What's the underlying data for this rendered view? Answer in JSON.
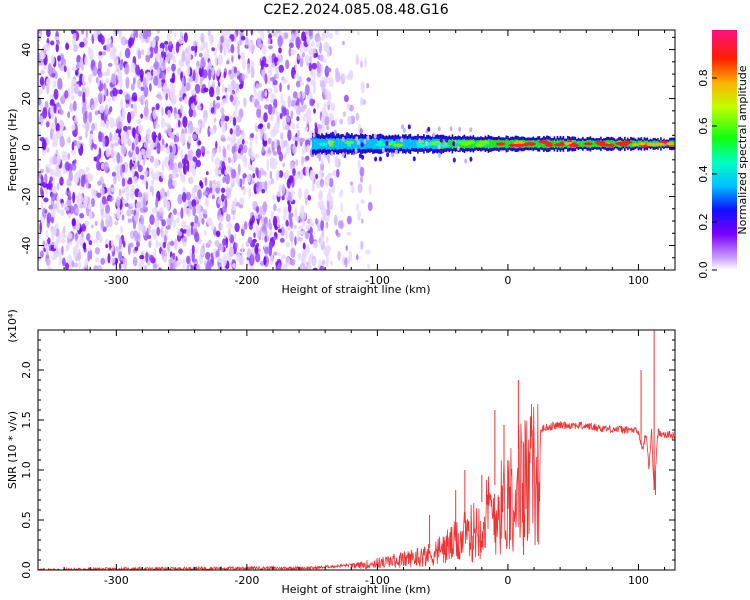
{
  "title": "C2E2.2024.085.08.48.G16",
  "chart_data": [
    {
      "type": "heatmap",
      "xlabel": "Height of straight line (km)",
      "ylabel": "Frequency (Hz)",
      "xlim": [
        -360,
        128
      ],
      "ylim": [
        -50,
        48
      ],
      "xticks": [
        -300,
        -200,
        -100,
        0,
        100
      ],
      "yticks": [
        -40,
        -20,
        0,
        20,
        40
      ],
      "colorbar": {
        "label": "Normalized spectral amplitude",
        "range": [
          0,
          1
        ],
        "ticks": [
          "0.0",
          "0.2",
          "0.4",
          "0.6",
          "0.8"
        ],
        "colormap": "rainbow"
      },
      "description_data": {
        "noise_region_x": [
          -360,
          -135
        ],
        "noise_frequency_range": [
          -50,
          48
        ],
        "signal_start_x": -150,
        "signal_frequency_center": 1.5,
        "signal_width_hz": [
          8,
          4
        ]
      }
    },
    {
      "type": "line",
      "xlabel": "Height of straight line (km)",
      "ylabel": "SNR (10 * v/v)",
      "y_multiplier": "(x10⁴)",
      "xlim": [
        -360,
        128
      ],
      "ylim": [
        0,
        2.4
      ],
      "xticks": [
        -300,
        -200,
        -100,
        0,
        100
      ],
      "yticks": [
        "0.0",
        "0.5",
        "1.0",
        "1.5",
        "2.0"
      ],
      "series": [
        {
          "color": "#ee3333",
          "x": [
            -360,
            -300,
            -200,
            -150,
            -120,
            -100,
            -80,
            -60,
            -50,
            -40,
            -35,
            -30,
            -25,
            -20,
            -15,
            -10,
            -5,
            0,
            5,
            10,
            15,
            20,
            25,
            30,
            40,
            50,
            60,
            70,
            80,
            90,
            95,
            100,
            103,
            106,
            108,
            110,
            112,
            115,
            120,
            128
          ],
          "y": [
            0.0,
            0.01,
            0.02,
            0.02,
            0.05,
            0.1,
            0.15,
            0.22,
            0.3,
            0.4,
            0.45,
            0.5,
            0.58,
            0.68,
            0.78,
            0.85,
            0.9,
            1.05,
            1.15,
            1.25,
            1.32,
            1.36,
            1.4,
            1.43,
            1.45,
            1.45,
            1.44,
            1.42,
            1.41,
            1.4,
            1.4,
            1.38,
            1.2,
            1.38,
            1.0,
            1.4,
            0.8,
            1.38,
            1.36,
            1.34
          ],
          "spikes": [
            {
              "x": -60,
              "y": 0.55
            },
            {
              "x": -40,
              "y": 0.8
            },
            {
              "x": -33,
              "y": 1.0
            },
            {
              "x": -20,
              "y": 0.95
            },
            {
              "x": -10,
              "y": 1.6
            },
            {
              "x": -3,
              "y": 1.45
            },
            {
              "x": 8,
              "y": 1.9
            },
            {
              "x": 12,
              "y": 0.15
            },
            {
              "x": 102,
              "y": 2.0
            },
            {
              "x": 112,
              "y": 2.4
            },
            {
              "x": 113,
              "y": 0.75
            }
          ]
        }
      ]
    }
  ]
}
